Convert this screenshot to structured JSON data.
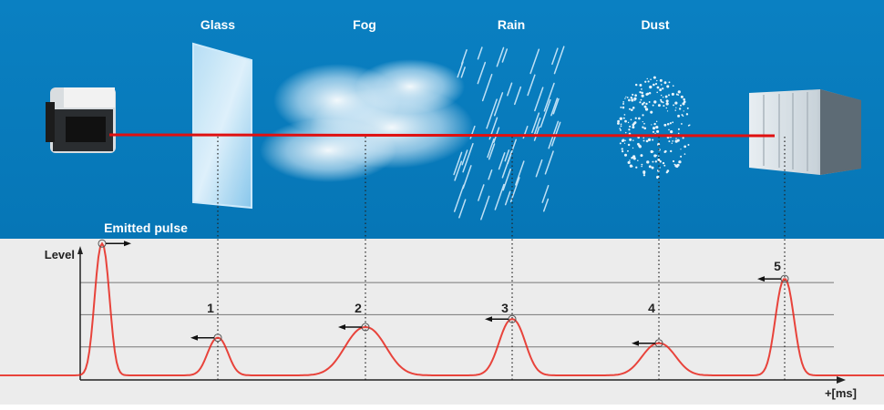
{
  "scene": {
    "obstacles": [
      {
        "label": "Glass",
        "icon": "glass-pane-icon"
      },
      {
        "label": "Fog",
        "icon": "fog-cloud-icon"
      },
      {
        "label": "Rain",
        "icon": "rain-streaks-icon"
      },
      {
        "label": "Dust",
        "icon": "dust-particles-icon"
      }
    ],
    "sensor_icon": "laser-scanner-icon",
    "target_icon": "shipping-container-icon",
    "emitted_label": "Emitted pulse"
  },
  "graph": {
    "y_axis_label": "Level",
    "x_axis_label": "+[ms]",
    "emitted_level": 4.1,
    "echoes": [
      {
        "number": "1",
        "level": 1.17
      },
      {
        "number": "2",
        "level": 1.5
      },
      {
        "number": "3",
        "level": 1.75
      },
      {
        "number": "4",
        "level": 1.0
      },
      {
        "number": "5",
        "level": 3.0
      }
    ],
    "threshold_levels": [
      1,
      2,
      3
    ]
  },
  "colors": {
    "sky": "#0a7fc0",
    "panel": "#ececec",
    "signal": "#e8261c",
    "beam": "#e01010"
  }
}
